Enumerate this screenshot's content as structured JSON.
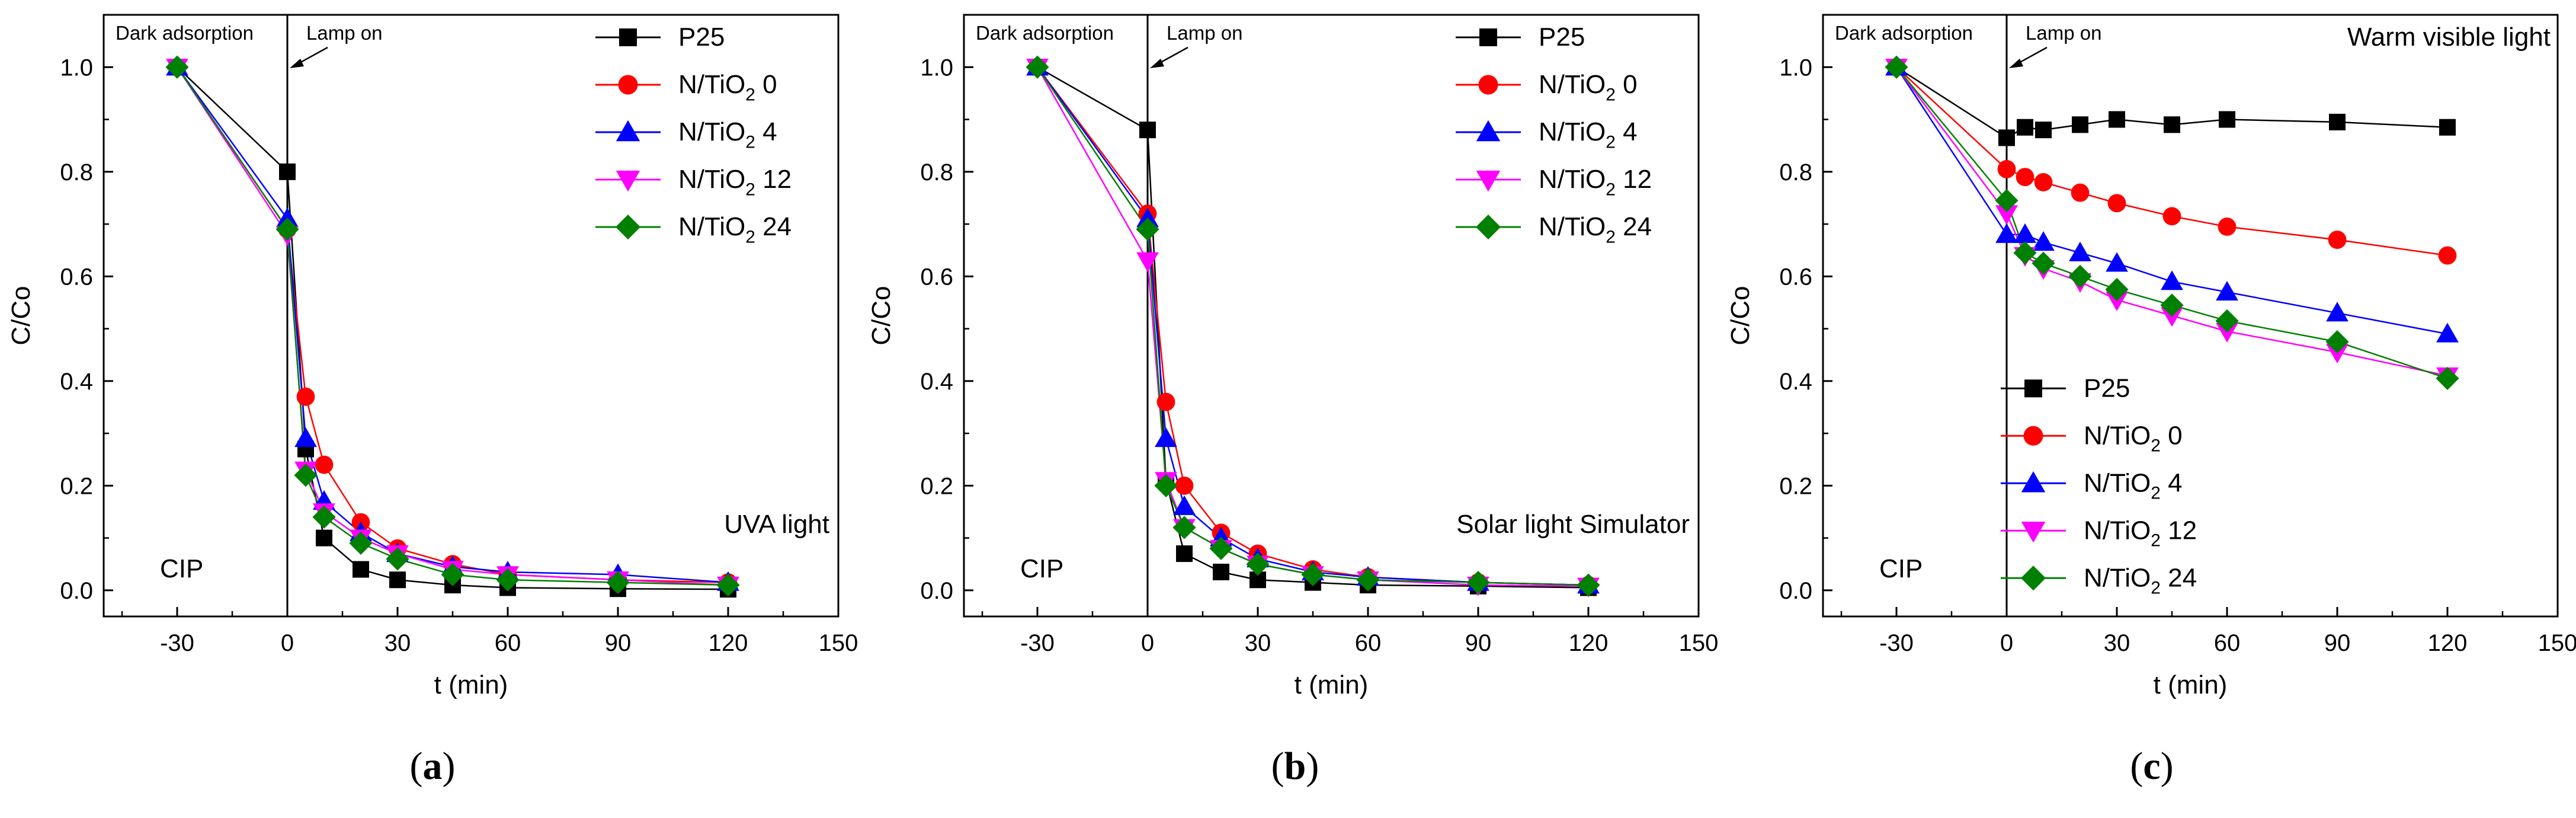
{
  "figure": {
    "panel_labels": [
      "(a)",
      "(b)",
      "(c)"
    ],
    "panel_letters": [
      "a",
      "b",
      "c"
    ]
  },
  "chart_data": [
    {
      "type": "line",
      "panel": "(a)",
      "title": "",
      "xlabel": "t (min)",
      "ylabel": "C/Co",
      "xlim": [
        -50,
        150
      ],
      "ylim": [
        -0.05,
        1.1
      ],
      "xticks": [
        -30,
        0,
        30,
        60,
        90,
        120,
        150
      ],
      "yticks": [
        0.0,
        0.2,
        0.4,
        0.6,
        0.8,
        1.0
      ],
      "xtick_labels": [
        "-30",
        "0",
        "30",
        "60",
        "90",
        "120",
        "150"
      ],
      "ytick_labels": [
        "0.0",
        "0.2",
        "0.4",
        "0.6",
        "0.8",
        "1.0"
      ],
      "grid": false,
      "legend_position": "top-right",
      "annotations": {
        "dark": "Dark adsorption",
        "lamp": "Lamp on",
        "light": "UVA light",
        "compound": "CIP"
      },
      "series": [
        {
          "name": "P25",
          "marker": "square",
          "color": "#000000",
          "x": [
            -30,
            0,
            5,
            10,
            20,
            30,
            45,
            60,
            90,
            120
          ],
          "y": [
            1.0,
            0.8,
            0.27,
            0.1,
            0.04,
            0.02,
            0.01,
            0.005,
            0.003,
            0.002
          ]
        },
        {
          "name": "N/TiO2 0",
          "marker": "circle",
          "color": "#ff0000",
          "x": [
            -30,
            0,
            5,
            10,
            20,
            30,
            45,
            60,
            90,
            120
          ],
          "y": [
            1.0,
            0.69,
            0.37,
            0.24,
            0.13,
            0.08,
            0.05,
            0.03,
            0.02,
            0.015
          ]
        },
        {
          "name": "N/TiO2 4",
          "marker": "triangle-up",
          "color": "#0000ff",
          "x": [
            -30,
            0,
            5,
            10,
            20,
            30,
            45,
            60,
            90,
            120
          ],
          "y": [
            1.0,
            0.71,
            0.29,
            0.17,
            0.11,
            0.07,
            0.045,
            0.035,
            0.03,
            0.015
          ]
        },
        {
          "name": "N/TiO2 12",
          "marker": "triangle-down",
          "color": "#ff00ff",
          "x": [
            -30,
            0,
            5,
            10,
            20,
            30,
            45,
            60,
            90,
            120
          ],
          "y": [
            1.0,
            0.68,
            0.23,
            0.15,
            0.1,
            0.07,
            0.04,
            0.03,
            0.02,
            0.01
          ]
        },
        {
          "name": "N/TiO2 24",
          "marker": "diamond",
          "color": "#008000",
          "x": [
            -30,
            0,
            5,
            10,
            20,
            30,
            45,
            60,
            90,
            120
          ],
          "y": [
            1.0,
            0.69,
            0.22,
            0.14,
            0.09,
            0.06,
            0.03,
            0.02,
            0.015,
            0.01
          ]
        }
      ]
    },
    {
      "type": "line",
      "panel": "(b)",
      "title": "",
      "xlabel": "t (min)",
      "ylabel": "C/Co",
      "xlim": [
        -50,
        150
      ],
      "ylim": [
        -0.05,
        1.1
      ],
      "xticks": [
        -30,
        0,
        30,
        60,
        90,
        120,
        150
      ],
      "yticks": [
        0.0,
        0.2,
        0.4,
        0.6,
        0.8,
        1.0
      ],
      "xtick_labels": [
        "-30",
        "0",
        "30",
        "60",
        "90",
        "120",
        "150"
      ],
      "ytick_labels": [
        "0.0",
        "0.2",
        "0.4",
        "0.6",
        "0.8",
        "1.0"
      ],
      "grid": false,
      "legend_position": "top-right",
      "annotations": {
        "dark": "Dark adsorption",
        "lamp": "Lamp on",
        "light": "Solar light Simulator",
        "compound": "CIP"
      },
      "series": [
        {
          "name": "P25",
          "marker": "square",
          "color": "#000000",
          "x": [
            -30,
            0,
            5,
            10,
            20,
            30,
            45,
            60,
            90,
            120
          ],
          "y": [
            1.0,
            0.88,
            0.21,
            0.07,
            0.035,
            0.02,
            0.015,
            0.01,
            0.008,
            0.005
          ]
        },
        {
          "name": "N/TiO2 0",
          "marker": "circle",
          "color": "#ff0000",
          "x": [
            -30,
            0,
            5,
            10,
            20,
            30,
            45,
            60,
            90,
            120
          ],
          "y": [
            1.0,
            0.72,
            0.36,
            0.2,
            0.11,
            0.07,
            0.04,
            0.025,
            0.015,
            0.01
          ]
        },
        {
          "name": "N/TiO2 4",
          "marker": "triangle-up",
          "color": "#0000ff",
          "x": [
            -30,
            0,
            5,
            10,
            20,
            30,
            45,
            60,
            90,
            120
          ],
          "y": [
            1.0,
            0.71,
            0.29,
            0.16,
            0.1,
            0.06,
            0.035,
            0.025,
            0.015,
            0.01
          ]
        },
        {
          "name": "N/TiO2 12",
          "marker": "triangle-down",
          "color": "#ff00ff",
          "x": [
            -30,
            0,
            5,
            10,
            20,
            30,
            45,
            60,
            90,
            120
          ],
          "y": [
            1.0,
            0.63,
            0.21,
            0.12,
            0.08,
            0.05,
            0.03,
            0.02,
            0.01,
            0.008
          ]
        },
        {
          "name": "N/TiO2 24",
          "marker": "diamond",
          "color": "#008000",
          "x": [
            -30,
            0,
            5,
            10,
            20,
            30,
            45,
            60,
            90,
            120
          ],
          "y": [
            1.0,
            0.69,
            0.2,
            0.12,
            0.08,
            0.05,
            0.03,
            0.02,
            0.015,
            0.01
          ]
        }
      ]
    },
    {
      "type": "line",
      "panel": "(c)",
      "title": "",
      "xlabel": "t (min)",
      "ylabel": "C/Co",
      "xlim": [
        -50,
        150
      ],
      "ylim": [
        -0.05,
        1.1
      ],
      "xticks": [
        -30,
        0,
        30,
        60,
        90,
        120,
        150
      ],
      "yticks": [
        0.0,
        0.2,
        0.4,
        0.6,
        0.8,
        1.0
      ],
      "xtick_labels": [
        "-30",
        "0",
        "30",
        "60",
        "90",
        "120",
        "150"
      ],
      "ytick_labels": [
        "0.0",
        "0.2",
        "0.4",
        "0.6",
        "0.8",
        "1.0"
      ],
      "grid": false,
      "legend_position": "bottom-left",
      "annotations": {
        "dark": "Dark adsorption",
        "lamp": "Lamp on",
        "light": "Warm visible light",
        "compound": "CIP"
      },
      "series": [
        {
          "name": "P25",
          "marker": "square",
          "color": "#000000",
          "x": [
            -30,
            0,
            5,
            10,
            20,
            30,
            45,
            60,
            90,
            120
          ],
          "y": [
            1.0,
            0.865,
            0.885,
            0.88,
            0.89,
            0.9,
            0.89,
            0.9,
            0.895,
            0.885
          ]
        },
        {
          "name": "N/TiO2 0",
          "marker": "circle",
          "color": "#ff0000",
          "x": [
            -30,
            0,
            5,
            10,
            20,
            30,
            45,
            60,
            90,
            120
          ],
          "y": [
            1.0,
            0.805,
            0.79,
            0.78,
            0.76,
            0.74,
            0.715,
            0.695,
            0.67,
            0.64
          ]
        },
        {
          "name": "N/TiO2 4",
          "marker": "triangle-up",
          "color": "#0000ff",
          "x": [
            -30,
            0,
            5,
            10,
            20,
            30,
            45,
            60,
            90,
            120
          ],
          "y": [
            1.0,
            0.68,
            0.68,
            0.665,
            0.645,
            0.625,
            0.59,
            0.57,
            0.53,
            0.49
          ]
        },
        {
          "name": "N/TiO2 12",
          "marker": "triangle-down",
          "color": "#ff00ff",
          "x": [
            -30,
            0,
            5,
            10,
            20,
            30,
            45,
            60,
            90,
            120
          ],
          "y": [
            1.0,
            0.72,
            0.64,
            0.615,
            0.59,
            0.555,
            0.525,
            0.495,
            0.455,
            0.41
          ]
        },
        {
          "name": "N/TiO2 24",
          "marker": "diamond",
          "color": "#008000",
          "x": [
            -30,
            0,
            5,
            10,
            20,
            30,
            45,
            60,
            90,
            120
          ],
          "y": [
            1.0,
            0.745,
            0.645,
            0.625,
            0.6,
            0.575,
            0.545,
            0.515,
            0.475,
            0.405
          ]
        }
      ]
    }
  ]
}
